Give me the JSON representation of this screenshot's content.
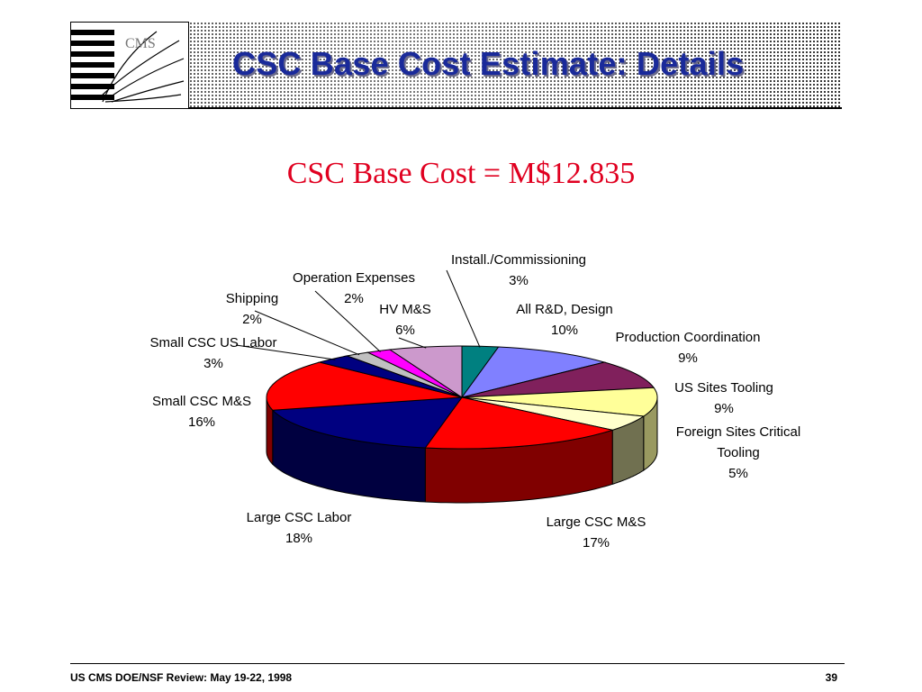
{
  "header": {
    "title": "CSC Base Cost Estimate: Details",
    "logo": "CMS logo"
  },
  "footer": {
    "left": "US CMS DOE/NSF Review:  May 19-22, 1998",
    "page": "39"
  },
  "chart_data": {
    "type": "pie",
    "title": "CSC Base Cost = M$12.835",
    "slices": [
      {
        "label": "Install./Commissioning",
        "pct_label": "3%",
        "value": 3,
        "color": "#008080",
        "side": "#004a4a"
      },
      {
        "label": "All R&D, Design",
        "pct_label": "10%",
        "value": 10,
        "color": "#8080ff",
        "side": "#4a4a99"
      },
      {
        "label": "Production Coordination",
        "pct_label": "9%",
        "value": 9,
        "color": "#80205c",
        "side": "#4a1035"
      },
      {
        "label": "US Sites Tooling",
        "pct_label": "9%",
        "value": 9,
        "color": "#ffff99",
        "side": "#999960"
      },
      {
        "label": "Foreign Sites Critical Tooling",
        "pct_label": "5%",
        "value": 5,
        "color": "#ffffcc",
        "side": "#707050"
      },
      {
        "label": "Large CSC M&S",
        "pct_label": "17%",
        "value": 17,
        "color": "#ff0000",
        "side": "#800000"
      },
      {
        "label": "Large CSC Labor",
        "pct_label": "18%",
        "value": 18,
        "color": "#000080",
        "side": "#000040"
      },
      {
        "label": "Small CSC M&S",
        "pct_label": "16%",
        "value": 16,
        "color": "#ff0000",
        "side": "#800000"
      },
      {
        "label": "Small CSC US Labor",
        "pct_label": "3%",
        "value": 3,
        "color": "#000080",
        "side": "#000040"
      },
      {
        "label": "Shipping",
        "pct_label": "2%",
        "value": 2,
        "color": "#c0c0c0",
        "side": "#707070"
      },
      {
        "label": "Operation Expenses",
        "pct_label": "2%",
        "value": 2,
        "color": "#ff00ff",
        "side": "#800080"
      },
      {
        "label": "HV M&S",
        "pct_label": "6%",
        "value": 6,
        "color": "#cc99cc",
        "side": "#7a5a7a"
      }
    ]
  }
}
